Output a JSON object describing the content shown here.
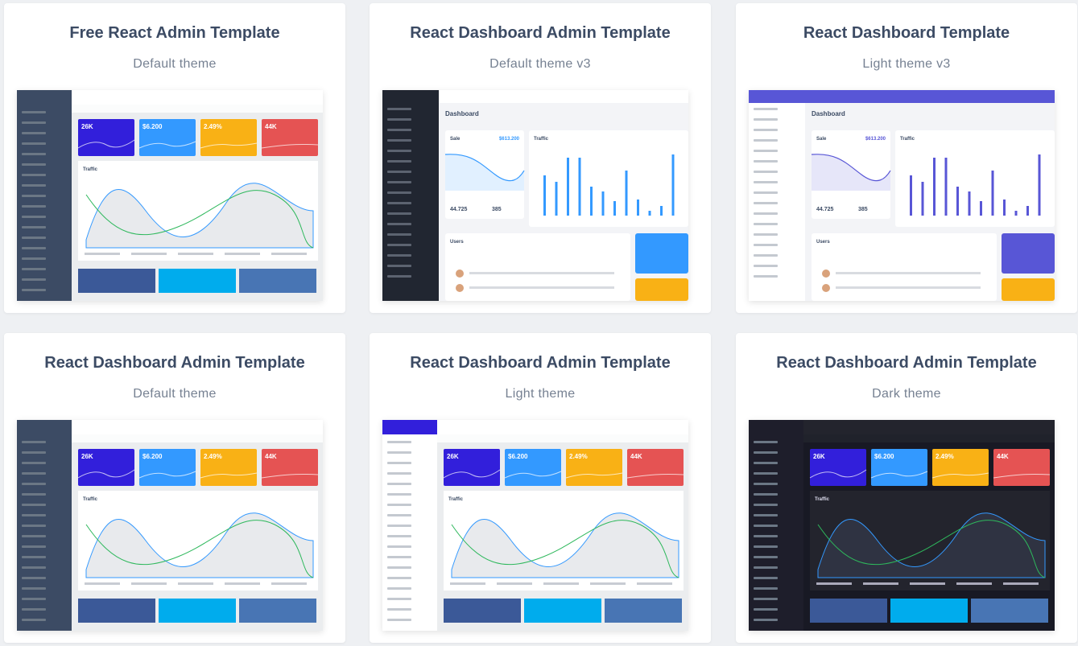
{
  "cards": [
    {
      "title": "Free React Admin Template",
      "subtitle": "Default theme",
      "preview": {
        "stats": [
          "26K",
          "$6.200",
          "2.49%",
          "44K"
        ],
        "chart": "Traffic"
      }
    },
    {
      "title": "React Dashboard Admin Template",
      "subtitle": "Default theme v3",
      "preview": {
        "heading": "Dashboard",
        "sale": "Sale",
        "sale_value": "$613.200",
        "traffic": "Traffic",
        "stats": [
          "44.725",
          "385"
        ],
        "users": "Users"
      }
    },
    {
      "title": "React Dashboard Template",
      "subtitle": "Light theme v3",
      "preview": {
        "heading": "Dashboard",
        "sale": "Sale",
        "sale_value": "$613.200",
        "traffic": "Traffic",
        "stats": [
          "44.725",
          "385"
        ],
        "users": "Users"
      }
    },
    {
      "title": "React Dashboard Admin Template",
      "subtitle": "Default theme",
      "preview": {
        "stats": [
          "26K",
          "$6.200",
          "2.49%",
          "44K"
        ],
        "chart": "Traffic"
      }
    },
    {
      "title": "React Dashboard Admin Template",
      "subtitle": "Light theme",
      "preview": {
        "stats": [
          "26K",
          "$6.200",
          "2.49%",
          "44K"
        ],
        "chart": "Traffic"
      }
    },
    {
      "title": "React Dashboard Admin Template",
      "subtitle": "Dark theme",
      "preview": {
        "stats": [
          "26K",
          "$6.200",
          "2.49%",
          "44K"
        ],
        "chart": "Traffic"
      }
    }
  ]
}
